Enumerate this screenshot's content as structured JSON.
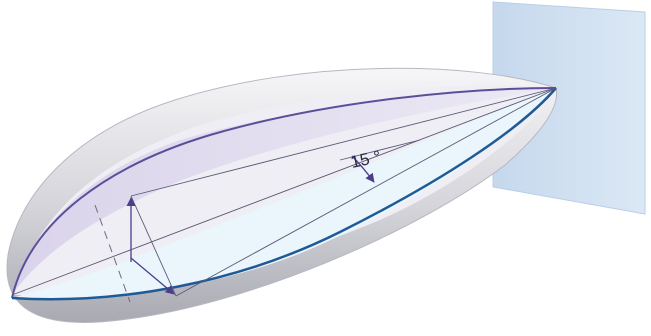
{
  "diagram": {
    "angle_label": "15 °",
    "colors": {
      "panel": "#d2e2f2",
      "panel_edge": "#b9cfe6",
      "shell_outer": "#c9c9cf",
      "shell_inner": "#eeeef3",
      "upper_surface": "#e3def0",
      "lower_surface": "#e9f4fb",
      "rim_upper": "#5b4f9a",
      "rim_lower": "#1f5a96",
      "arrow": "#4b3f8c",
      "line": "#5a5a78"
    }
  }
}
